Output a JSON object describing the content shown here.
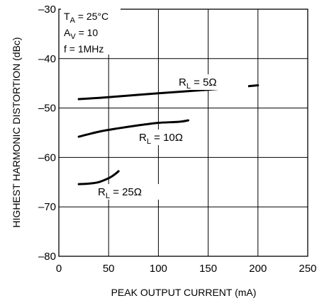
{
  "chart_data": {
    "type": "line",
    "title": "",
    "xlabel": "PEAK OUTPUT CURRENT (mA)",
    "ylabel": "HIGHEST HARMONIC DISTORTION (dBc)",
    "xlim": [
      0,
      250
    ],
    "ylim": [
      -80,
      -30
    ],
    "xticks": [
      "0",
      "50",
      "100",
      "150",
      "200",
      "250"
    ],
    "yticks": [
      "–30",
      "–40",
      "–50",
      "–60",
      "–70",
      "–80"
    ],
    "grid": true,
    "conditions": {
      "ta": {
        "main": "T",
        "sub": "A",
        "rest": " = 25°C"
      },
      "av": {
        "main": "A",
        "sub": "V",
        "rest": " = 10"
      },
      "f": "f = 1MHz"
    },
    "series": [
      {
        "name": "RL = 5Ω",
        "label": {
          "main": "R",
          "sub": "L",
          "rest": " = 5Ω"
        },
        "x": [
          20,
          50,
          100,
          150,
          200
        ],
        "y": [
          -48.2,
          -47.8,
          -47.0,
          -46.3,
          -45.4
        ]
      },
      {
        "name": "RL = 10Ω",
        "label": {
          "main": "R",
          "sub": "L",
          "rest": " = 10Ω"
        },
        "x": [
          20,
          40,
          60,
          80,
          100,
          120,
          130
        ],
        "y": [
          -55.8,
          -54.8,
          -54.1,
          -53.5,
          -53.0,
          -52.8,
          -52.5
        ]
      },
      {
        "name": "RL = 25Ω",
        "label": {
          "main": "R",
          "sub": "L",
          "rest": " = 25Ω"
        },
        "x": [
          20,
          30,
          40,
          50,
          55,
          60
        ],
        "y": [
          -65.4,
          -65.3,
          -65.0,
          -64.2,
          -63.6,
          -62.8
        ]
      }
    ]
  }
}
